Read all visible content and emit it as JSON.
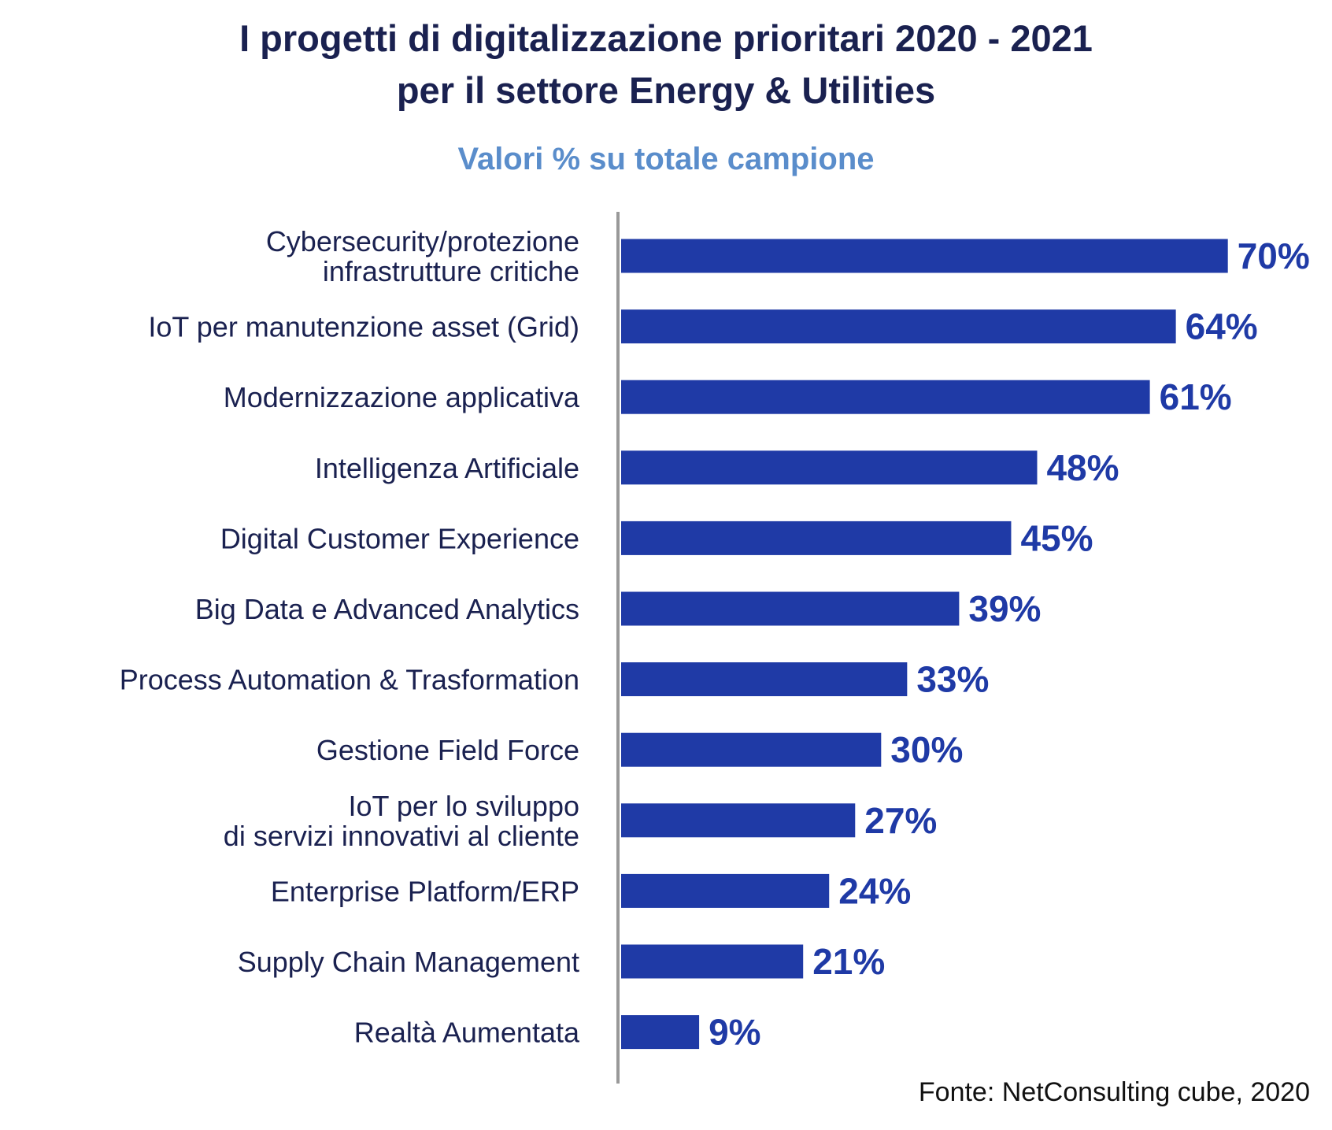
{
  "chart_data": {
    "type": "bar",
    "orientation": "horizontal",
    "title": [
      "I progetti di digitalizzazione prioritari 2020 - 2021",
      "per il settore Energy & Utilities"
    ],
    "subtitle": "Valori % su totale campione",
    "source": "Fonte: NetConsulting cube, 2020",
    "categories": [
      [
        "Cybersecurity/protezione",
        "infrastrutture critiche"
      ],
      [
        "IoT per manutenzione asset (Grid)"
      ],
      [
        "Modernizzazione applicativa"
      ],
      [
        "Intelligenza Artificiale"
      ],
      [
        "Digital Customer Experience"
      ],
      [
        "Big Data e Advanced Analytics"
      ],
      [
        "Process Automation & Trasformation"
      ],
      [
        "Gestione Field Force"
      ],
      [
        "IoT per lo sviluppo",
        "di servizi innovativi al cliente"
      ],
      [
        "Enterprise Platform/ERP"
      ],
      [
        "Supply Chain Management"
      ],
      [
        "Realtà Aumentata"
      ]
    ],
    "values": [
      70,
      64,
      61,
      48,
      45,
      39,
      33,
      30,
      27,
      24,
      21,
      9
    ],
    "value_labels": [
      "70%",
      "64%",
      "61%",
      "48%",
      "45%",
      "39%",
      "33%",
      "30%",
      "27%",
      "24%",
      "21%",
      "9%"
    ],
    "unit": "%",
    "grid": false,
    "legend": "none",
    "colors": {
      "bar": "#1f3aa6",
      "text": "#1a2150",
      "subtitle": "#5a8dcb",
      "axis": "#999999"
    }
  }
}
